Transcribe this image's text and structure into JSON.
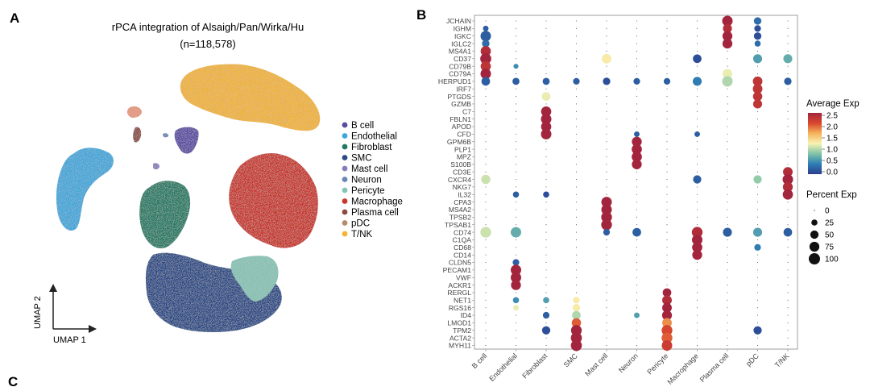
{
  "panelA": {
    "letter": "A",
    "title": "rPCA integration of Alsaigh/Pan/Wirka/Hu",
    "subtitle": "(n=118,578)",
    "axis_y": "UMAP 2",
    "axis_x": "UMAP 1",
    "legend": [
      {
        "label": "B cell",
        "color": "#5a4ba3"
      },
      {
        "label": "Endothelial",
        "color": "#3ea7dc"
      },
      {
        "label": "Fibroblast",
        "color": "#237a62"
      },
      {
        "label": "SMC",
        "color": "#2c4a86"
      },
      {
        "label": "Mast cell",
        "color": "#8a7bbf"
      },
      {
        "label": "Neuron",
        "color": "#6b86b8"
      },
      {
        "label": "Pericyte",
        "color": "#86c4b5"
      },
      {
        "label": "Macrophage",
        "color": "#c9362b"
      },
      {
        "label": "Plasma cell",
        "color": "#8c4a43"
      },
      {
        "label": "pDC",
        "color": "#b58e70"
      },
      {
        "label": "T/NK",
        "color": "#f3b430"
      }
    ]
  },
  "panelB": {
    "letter": "B",
    "genes": [
      "JCHAIN",
      "IGHM",
      "IGKC",
      "IGLC2",
      "MS4A1",
      "CD37",
      "CD79B",
      "CD79A",
      "HERPUD1",
      "IRF7",
      "PTGDS",
      "GZMB",
      "C7",
      "FBLN1",
      "APOD",
      "CFD",
      "GPM6B",
      "PLP1",
      "MPZ",
      "S100B",
      "CD3E",
      "CXCR4",
      "NKG7",
      "IL32",
      "CPA3",
      "MS4A2",
      "TPSB2",
      "TPSAB1",
      "CD74",
      "C1QA",
      "CD68",
      "CD14",
      "CLDN5",
      "PECAM1",
      "VWF",
      "ACKR1",
      "RERGL",
      "NET1",
      "RGS16",
      "ID4",
      "LMOD1",
      "TPM2",
      "ACTA2",
      "MYH11"
    ],
    "cell_types": [
      "B cell",
      "Endothelial",
      "Fibroblast",
      "SMC",
      "Mast cell",
      "Neuron",
      "Pericyte",
      "Macrophage",
      "Plasma cell",
      "pDC",
      "T/NK"
    ]
  },
  "legend_exp": {
    "title": "Average Exp",
    "ticks": [
      "2.5",
      "2.0",
      "1.5",
      "1.0",
      "0.5",
      "0.0"
    ],
    "min": 0,
    "max": 2.5
  },
  "legend_pct": {
    "title": "Percent Exp",
    "values": [
      "0",
      "25",
      "50",
      "75",
      "100"
    ]
  },
  "panelC": {
    "letter": "C"
  },
  "chart_data": {
    "type": "dotplot",
    "x_categories": [
      "B cell",
      "Endothelial",
      "Fibroblast",
      "SMC",
      "Mast cell",
      "Neuron",
      "Pericyte",
      "Macrophage",
      "Plasma cell",
      "pDC",
      "T/NK"
    ],
    "y_genes": [
      "JCHAIN",
      "IGHM",
      "IGKC",
      "IGLC2",
      "MS4A1",
      "CD37",
      "CD79B",
      "CD79A",
      "HERPUD1",
      "IRF7",
      "PTGDS",
      "GZMB",
      "C7",
      "FBLN1",
      "APOD",
      "CFD",
      "GPM6B",
      "PLP1",
      "MPZ",
      "S100B",
      "CD3E",
      "CXCR4",
      "NKG7",
      "IL32",
      "CPA3",
      "MS4A2",
      "TPSB2",
      "TPSAB1",
      "CD74",
      "C1QA",
      "CD68",
      "CD14",
      "CLDN5",
      "PECAM1",
      "VWF",
      "ACKR1",
      "RERGL",
      "NET1",
      "RGS16",
      "ID4",
      "LMOD1",
      "TPM2",
      "ACTA2",
      "MYH11"
    ],
    "color_scale": {
      "label": "Average Exp",
      "range": [
        0,
        2.5
      ],
      "palette": [
        "#2c3f8f",
        "#2f7fb5",
        "#7fc3a8",
        "#f7f3b1",
        "#f6b15a",
        "#d9472e",
        "#a3253d"
      ]
    },
    "size_scale": {
      "label": "Percent Exp",
      "range": [
        0,
        100
      ]
    },
    "points": [
      {
        "gene": "JCHAIN",
        "cell": "Plasma cell",
        "avg": 2.5,
        "pct": 85
      },
      {
        "gene": "JCHAIN",
        "cell": "pDC",
        "avg": 0.3,
        "pct": 40
      },
      {
        "gene": "IGHM",
        "cell": "B cell",
        "avg": 0.2,
        "pct": 20
      },
      {
        "gene": "IGHM",
        "cell": "Plasma cell",
        "avg": 2.4,
        "pct": 60
      },
      {
        "gene": "IGHM",
        "cell": "pDC",
        "avg": 0.1,
        "pct": 30
      },
      {
        "gene": "IGKC",
        "cell": "B cell",
        "avg": 0.2,
        "pct": 85
      },
      {
        "gene": "IGKC",
        "cell": "Plasma cell",
        "avg": 2.5,
        "pct": 75
      },
      {
        "gene": "IGKC",
        "cell": "pDC",
        "avg": 0.1,
        "pct": 40
      },
      {
        "gene": "IGLC2",
        "cell": "B cell",
        "avg": 0.3,
        "pct": 40
      },
      {
        "gene": "IGLC2",
        "cell": "Plasma cell",
        "avg": 2.5,
        "pct": 75
      },
      {
        "gene": "IGLC2",
        "cell": "pDC",
        "avg": 0.3,
        "pct": 25
      },
      {
        "gene": "MS4A1",
        "cell": "B cell",
        "avg": 2.4,
        "pct": 80
      },
      {
        "gene": "CD37",
        "cell": "B cell",
        "avg": 2.5,
        "pct": 95
      },
      {
        "gene": "CD37",
        "cell": "Mast cell",
        "avg": 1.3,
        "pct": 70
      },
      {
        "gene": "CD37",
        "cell": "Macrophage",
        "avg": 0.1,
        "pct": 55
      },
      {
        "gene": "CD37",
        "cell": "pDC",
        "avg": 0.6,
        "pct": 60
      },
      {
        "gene": "CD37",
        "cell": "T/NK",
        "avg": 0.7,
        "pct": 60
      },
      {
        "gene": "CD79B",
        "cell": "B cell",
        "avg": 2.3,
        "pct": 80
      },
      {
        "gene": "CD79B",
        "cell": "Endothelial",
        "avg": 0.5,
        "pct": 15
      },
      {
        "gene": "CD79A",
        "cell": "B cell",
        "avg": 2.5,
        "pct": 85
      },
      {
        "gene": "CD79A",
        "cell": "Plasma cell",
        "avg": 1.2,
        "pct": 70
      },
      {
        "gene": "HERPUD1",
        "cell": "B cell",
        "avg": 0.2,
        "pct": 55
      },
      {
        "gene": "HERPUD1",
        "cell": "Endothelial",
        "avg": 0.2,
        "pct": 35
      },
      {
        "gene": "HERPUD1",
        "cell": "Fibroblast",
        "avg": 0.2,
        "pct": 35
      },
      {
        "gene": "HERPUD1",
        "cell": "SMC",
        "avg": 0.2,
        "pct": 30
      },
      {
        "gene": "HERPUD1",
        "cell": "Mast cell",
        "avg": 0.1,
        "pct": 40
      },
      {
        "gene": "HERPUD1",
        "cell": "Neuron",
        "avg": 0.2,
        "pct": 30
      },
      {
        "gene": "HERPUD1",
        "cell": "Pericyte",
        "avg": 0.2,
        "pct": 30
      },
      {
        "gene": "HERPUD1",
        "cell": "Macrophage",
        "avg": 0.4,
        "pct": 60
      },
      {
        "gene": "HERPUD1",
        "cell": "Plasma cell",
        "avg": 1.0,
        "pct": 85
      },
      {
        "gene": "HERPUD1",
        "cell": "pDC",
        "avg": 2.3,
        "pct": 70
      },
      {
        "gene": "HERPUD1",
        "cell": "T/NK",
        "avg": 0.2,
        "pct": 40
      },
      {
        "gene": "IRF7",
        "cell": "pDC",
        "avg": 2.3,
        "pct": 70
      },
      {
        "gene": "PTGDS",
        "cell": "Fibroblast",
        "avg": 1.2,
        "pct": 55
      },
      {
        "gene": "PTGDS",
        "cell": "pDC",
        "avg": 2.3,
        "pct": 65
      },
      {
        "gene": "GZMB",
        "cell": "pDC",
        "avg": 2.3,
        "pct": 60
      },
      {
        "gene": "C7",
        "cell": "Fibroblast",
        "avg": 2.5,
        "pct": 80
      },
      {
        "gene": "FBLN1",
        "cell": "Fibroblast",
        "avg": 2.5,
        "pct": 85
      },
      {
        "gene": "APOD",
        "cell": "Fibroblast",
        "avg": 2.5,
        "pct": 80
      },
      {
        "gene": "CFD",
        "cell": "Fibroblast",
        "avg": 2.5,
        "pct": 85
      },
      {
        "gene": "CFD",
        "cell": "Neuron",
        "avg": 0.2,
        "pct": 20
      },
      {
        "gene": "CFD",
        "cell": "Macrophage",
        "avg": 0.2,
        "pct": 20
      },
      {
        "gene": "GPM6B",
        "cell": "Neuron",
        "avg": 2.5,
        "pct": 75
      },
      {
        "gene": "PLP1",
        "cell": "Neuron",
        "avg": 2.5,
        "pct": 80
      },
      {
        "gene": "MPZ",
        "cell": "Neuron",
        "avg": 2.5,
        "pct": 80
      },
      {
        "gene": "S100B",
        "cell": "Neuron",
        "avg": 2.5,
        "pct": 75
      },
      {
        "gene": "CD3E",
        "cell": "T/NK",
        "avg": 2.4,
        "pct": 70
      },
      {
        "gene": "CXCR4",
        "cell": "B cell",
        "avg": 1.1,
        "pct": 65
      },
      {
        "gene": "CXCR4",
        "cell": "Macrophage",
        "avg": 0.2,
        "pct": 50
      },
      {
        "gene": "CXCR4",
        "cell": "pDC",
        "avg": 0.9,
        "pct": 50
      },
      {
        "gene": "CXCR4",
        "cell": "T/NK",
        "avg": 2.5,
        "pct": 85
      },
      {
        "gene": "NKG7",
        "cell": "T/NK",
        "avg": 2.4,
        "pct": 75
      },
      {
        "gene": "IL32",
        "cell": "Endothelial",
        "avg": 0.2,
        "pct": 25
      },
      {
        "gene": "IL32",
        "cell": "Fibroblast",
        "avg": 0.1,
        "pct": 25
      },
      {
        "gene": "IL32",
        "cell": "T/NK",
        "avg": 2.5,
        "pct": 80
      },
      {
        "gene": "CPA3",
        "cell": "Mast cell",
        "avg": 2.5,
        "pct": 85
      },
      {
        "gene": "MS4A2",
        "cell": "Mast cell",
        "avg": 2.5,
        "pct": 85
      },
      {
        "gene": "TPSB2",
        "cell": "Mast cell",
        "avg": 2.5,
        "pct": 90
      },
      {
        "gene": "TPSAB1",
        "cell": "Mast cell",
        "avg": 2.5,
        "pct": 90
      },
      {
        "gene": "CD74",
        "cell": "B cell",
        "avg": 1.1,
        "pct": 90
      },
      {
        "gene": "CD74",
        "cell": "Endothelial",
        "avg": 0.7,
        "pct": 85
      },
      {
        "gene": "CD74",
        "cell": "Mast cell",
        "avg": 0.2,
        "pct": 30
      },
      {
        "gene": "CD74",
        "cell": "Neuron",
        "avg": 0.2,
        "pct": 55
      },
      {
        "gene": "CD74",
        "cell": "Macrophage",
        "avg": 2.4,
        "pct": 90
      },
      {
        "gene": "CD74",
        "cell": "Plasma cell",
        "avg": 0.2,
        "pct": 60
      },
      {
        "gene": "CD74",
        "cell": "pDC",
        "avg": 0.6,
        "pct": 60
      },
      {
        "gene": "CD74",
        "cell": "T/NK",
        "avg": 0.2,
        "pct": 55
      },
      {
        "gene": "C1QA",
        "cell": "Macrophage",
        "avg": 2.5,
        "pct": 85
      },
      {
        "gene": "CD68",
        "cell": "Macrophage",
        "avg": 2.5,
        "pct": 80
      },
      {
        "gene": "CD68",
        "cell": "pDC",
        "avg": 0.4,
        "pct": 30
      },
      {
        "gene": "CD14",
        "cell": "Macrophage",
        "avg": 2.5,
        "pct": 75
      },
      {
        "gene": "CLDN5",
        "cell": "Endothelial",
        "avg": 0.2,
        "pct": 30
      },
      {
        "gene": "PECAM1",
        "cell": "Endothelial",
        "avg": 2.5,
        "pct": 85
      },
      {
        "gene": "VWF",
        "cell": "Endothelial",
        "avg": 2.5,
        "pct": 85
      },
      {
        "gene": "ACKR1",
        "cell": "Endothelial",
        "avg": 2.5,
        "pct": 75
      },
      {
        "gene": "RERGL",
        "cell": "Pericyte",
        "avg": 2.5,
        "pct": 55
      },
      {
        "gene": "NET1",
        "cell": "Endothelial",
        "avg": 0.5,
        "pct": 25
      },
      {
        "gene": "NET1",
        "cell": "Fibroblast",
        "avg": 0.6,
        "pct": 25
      },
      {
        "gene": "NET1",
        "cell": "SMC",
        "avg": 1.3,
        "pct": 30
      },
      {
        "gene": "NET1",
        "cell": "Pericyte",
        "avg": 2.4,
        "pct": 70
      },
      {
        "gene": "RGS16",
        "cell": "Endothelial",
        "avg": 1.2,
        "pct": 20
      },
      {
        "gene": "RGS16",
        "cell": "SMC",
        "avg": 1.3,
        "pct": 40
      },
      {
        "gene": "RGS16",
        "cell": "Pericyte",
        "avg": 2.5,
        "pct": 70
      },
      {
        "gene": "ID4",
        "cell": "Fibroblast",
        "avg": 0.2,
        "pct": 30
      },
      {
        "gene": "ID4",
        "cell": "SMC",
        "avg": 1.0,
        "pct": 55
      },
      {
        "gene": "ID4",
        "cell": "Neuron",
        "avg": 0.6,
        "pct": 20
      },
      {
        "gene": "ID4",
        "cell": "Pericyte",
        "avg": 2.5,
        "pct": 75
      },
      {
        "gene": "LMOD1",
        "cell": "SMC",
        "avg": 2.0,
        "pct": 65
      },
      {
        "gene": "LMOD1",
        "cell": "Pericyte",
        "avg": 1.8,
        "pct": 70
      },
      {
        "gene": "TPM2",
        "cell": "Fibroblast",
        "avg": 0.1,
        "pct": 50
      },
      {
        "gene": "TPM2",
        "cell": "SMC",
        "avg": 2.5,
        "pct": 90
      },
      {
        "gene": "TPM2",
        "cell": "Pericyte",
        "avg": 2.1,
        "pct": 90
      },
      {
        "gene": "TPM2",
        "cell": "pDC",
        "avg": 0.1,
        "pct": 50
      },
      {
        "gene": "ACTA2",
        "cell": "SMC",
        "avg": 2.5,
        "pct": 95
      },
      {
        "gene": "ACTA2",
        "cell": "Pericyte",
        "avg": 2.0,
        "pct": 90
      },
      {
        "gene": "MYH11",
        "cell": "SMC",
        "avg": 2.5,
        "pct": 95
      },
      {
        "gene": "MYH11",
        "cell": "Pericyte",
        "avg": 2.2,
        "pct": 85
      }
    ]
  }
}
